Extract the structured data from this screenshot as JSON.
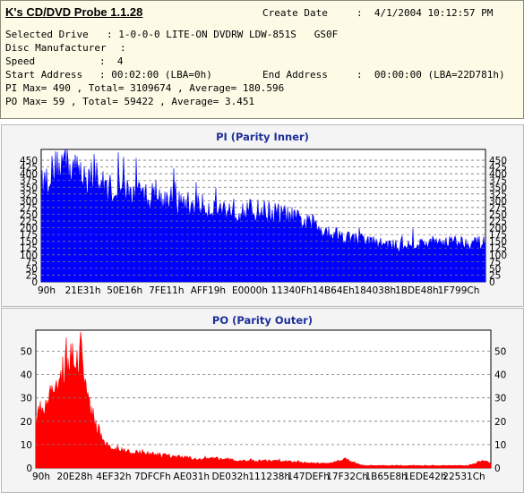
{
  "header": {
    "app_title": "K's CD/DVD Probe 1.1.28",
    "create_date_label": "Create Date",
    "create_date_value": ":  4/1/2004 10:12:57 PM",
    "selected_drive_label": "Selected Drive",
    "selected_drive_value": ": 1-0-0-0 LITE-ON DVDRW LDW-851S   GS0F",
    "disc_manufacturer_label": "Disc Manufacturer",
    "disc_manufacturer_value": ":",
    "speed_label": "Speed",
    "speed_value": ":  4",
    "start_address_label": "Start Address",
    "start_address_value": ": 00:02:00 (LBA=0h)",
    "end_address_label": "End Address",
    "end_address_value": ":  00:00:00 (LBA=22D781h)",
    "pi_summary": "PI Max= 490 , Total= 3109674 , Average= 180.596",
    "po_summary": "PO Max= 59 , Total= 59422 , Average= 3.451"
  },
  "colors": {
    "pi_fill": "#0000ff",
    "po_fill": "#ff0000",
    "title": "#1d2f9a",
    "grid": "#888888"
  },
  "chart_data": [
    {
      "type": "area",
      "title": "PI (Parity Inner)",
      "xlabel": "",
      "ylabel": "",
      "ylim": [
        0,
        490
      ],
      "yticks": [
        0,
        25,
        50,
        75,
        100,
        125,
        150,
        175,
        200,
        225,
        250,
        275,
        300,
        325,
        350,
        375,
        400,
        425,
        450
      ],
      "y_axis": "both",
      "grid": "horizontal dashed",
      "xticks": [
        "90h",
        "21E31h",
        "50E16h",
        "7FE11h",
        "AFF19h",
        "E0000h",
        "11340Fh",
        "14B64Eh",
        "184038h",
        "1BDE48h",
        "1F799Ch"
      ],
      "x_fraction": [
        0.0,
        0.018,
        0.05,
        0.08,
        0.12,
        0.15,
        0.2,
        0.25,
        0.3,
        0.35,
        0.4,
        0.45,
        0.5,
        0.55,
        0.6,
        0.65,
        0.7,
        0.75,
        0.8,
        0.85,
        0.9,
        0.95,
        1.0
      ],
      "series": [
        {
          "values": [
            350,
            395,
            445,
            410,
            375,
            345,
            330,
            315,
            295,
            280,
            270,
            262,
            262,
            245,
            215,
            185,
            160,
            145,
            132,
            140,
            150,
            148,
            142
          ]
        }
      ],
      "max": 490
    },
    {
      "type": "area",
      "title": "PO (Parity Outer)",
      "xlabel": "",
      "ylabel": "",
      "ylim": [
        0,
        59
      ],
      "yticks": [
        0,
        10,
        20,
        30,
        40,
        50
      ],
      "y_axis": "both",
      "grid": "horizontal dashed",
      "xticks": [
        "90h",
        "20E28h",
        "4EF32h",
        "7DFCFh",
        "AE031h",
        "DE032h",
        "111238h",
        "147DEFh",
        "17F32Ch",
        "1B65E8h",
        "1EDE42h",
        "22531Ch"
      ],
      "x_fraction": [
        0.0,
        0.04,
        0.08,
        0.1,
        0.12,
        0.15,
        0.2,
        0.25,
        0.3,
        0.35,
        0.4,
        0.45,
        0.5,
        0.55,
        0.6,
        0.65,
        0.68,
        0.7,
        0.72,
        0.75,
        0.8,
        0.85,
        0.9,
        0.95,
        0.98,
        1.0
      ],
      "series": [
        {
          "values": [
            22,
            33,
            50,
            45,
            25,
            10,
            7,
            6,
            5,
            4,
            4,
            3,
            3,
            3,
            2,
            2,
            4,
            2,
            1,
            1,
            1,
            1,
            1,
            1,
            3,
            2
          ]
        }
      ],
      "max": 59
    }
  ]
}
